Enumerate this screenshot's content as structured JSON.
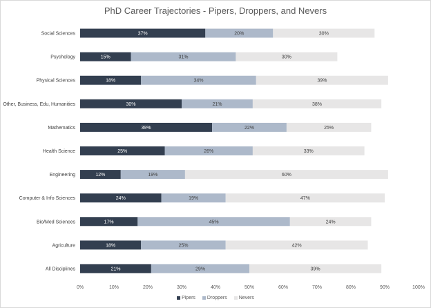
{
  "chart_data": {
    "type": "bar",
    "orientation": "horizontal",
    "stacked": true,
    "title": "PhD Career Trajectories - Pipers, Droppers, and Nevers",
    "categories": [
      "Social Sciences",
      "Psychology",
      "Physical Sciences",
      "Other, Business, Edu, Humanities",
      "Mathematics",
      "Health Science",
      "Engineering",
      "Computer & Info Sciences",
      "Bio/Med Sciences",
      "Agriculture",
      "All Disciplines"
    ],
    "series": [
      {
        "name": "Pipers",
        "color": "#333f50",
        "values": [
          37,
          15,
          18,
          30,
          39,
          25,
          12,
          24,
          17,
          18,
          21
        ]
      },
      {
        "name": "Droppers",
        "color": "#adb9ca",
        "values": [
          20,
          31,
          34,
          21,
          22,
          26,
          19,
          19,
          45,
          25,
          29
        ]
      },
      {
        "name": "Nevers",
        "color": "#e7e6e6",
        "values": [
          30,
          30,
          39,
          38,
          25,
          33,
          60,
          47,
          24,
          42,
          39
        ]
      }
    ],
    "xticks": [
      "0%",
      "10%",
      "20%",
      "30%",
      "40%",
      "50%",
      "60%",
      "70%",
      "80%",
      "90%",
      "100%"
    ],
    "xlim": [
      0,
      100
    ],
    "legend_position": "bottom",
    "grid": false
  }
}
